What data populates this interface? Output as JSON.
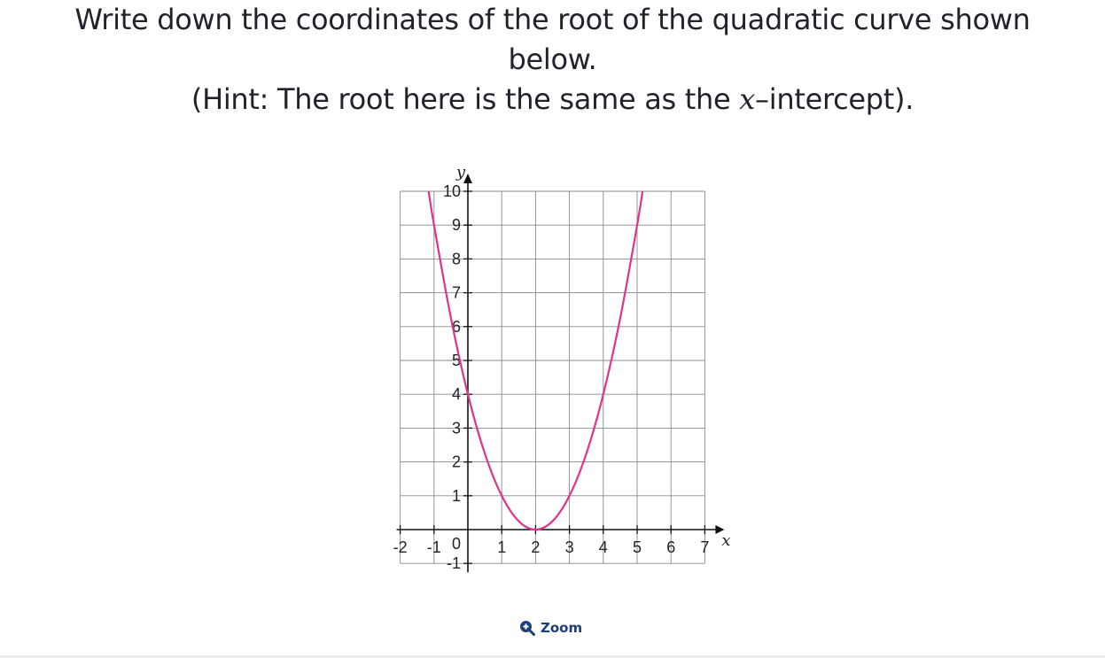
{
  "question": {
    "line1": "Write down the coordinates of the root of the quadratic curve shown",
    "line2": "below.",
    "hint_before": "(Hint: The root here is the same as the ",
    "hint_var": "x",
    "hint_after": "–intercept)."
  },
  "zoom": {
    "label": "Zoom",
    "icon": "zoom-in-icon"
  },
  "chart_data": {
    "type": "line",
    "title": "",
    "xlabel": "x",
    "ylabel": "y",
    "xlim": [
      -2,
      7
    ],
    "ylim": [
      -1,
      10
    ],
    "x_ticks": [
      -2,
      -1,
      1,
      2,
      3,
      4,
      5,
      6,
      7
    ],
    "y_ticks": [
      -1,
      1,
      2,
      3,
      4,
      5,
      6,
      7,
      8,
      9,
      10
    ],
    "origin_label": "0",
    "grid": true,
    "series": [
      {
        "equation": "y = (x - 2)^2",
        "color": "#e0338a",
        "x": [
          -1.16,
          -1,
          -0.5,
          0,
          0.5,
          1,
          1.5,
          2,
          2.5,
          3,
          3.5,
          4,
          4.5,
          5,
          5.16
        ],
        "y": [
          10,
          9,
          6.25,
          4,
          2.25,
          1,
          0.25,
          0,
          0.25,
          1,
          2.25,
          4,
          6.25,
          9,
          10
        ]
      }
    ]
  }
}
